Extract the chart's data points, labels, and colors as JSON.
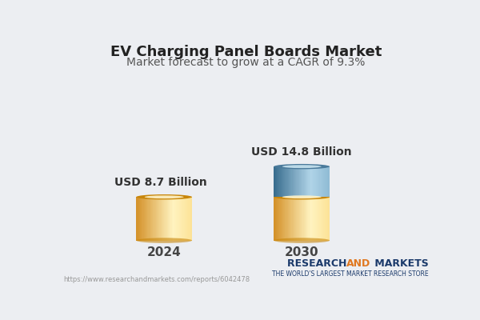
{
  "title": "EV Charging Panel Boards Market",
  "subtitle": "Market forecast to grow at a CAGR of 9.3%",
  "categories": [
    "2024",
    "2030"
  ],
  "values_2024": 8.7,
  "values_2030_yellow": 8.7,
  "values_2030_blue": 6.1,
  "label_2024": "USD 8.7 Billion",
  "label_2030": "USD 14.8 Billion",
  "yellow_body": "#F9D06A",
  "yellow_left": "#D4922A",
  "yellow_right": "#FFF3C0",
  "yellow_top_dark": "#C8860A",
  "yellow_top_light": "#FFF5CC",
  "blue_body": "#6B9FBF",
  "blue_left": "#3A6E8F",
  "blue_right": "#B0D4E8",
  "blue_top_dark": "#4A7A9B",
  "blue_top_light": "#C8E4F0",
  "bg_color": "#ECEEF2",
  "url": "https://www.researchandmarkets.com/reports/6042478",
  "brand_research": "RESEARCH ",
  "brand_and": "AND",
  "brand_markets": " MARKETS",
  "brand_tagline": "THE WORLD'S LARGEST MARKET RESEARCH STORE",
  "brand_color_main": "#1B3A6B",
  "brand_color_and": "#E07820",
  "title_fontsize": 13,
  "subtitle_fontsize": 10,
  "label_fontsize": 10,
  "axis_fontsize": 11,
  "url_fontsize": 6,
  "brand_fontsize": 9,
  "tagline_fontsize": 5.5
}
